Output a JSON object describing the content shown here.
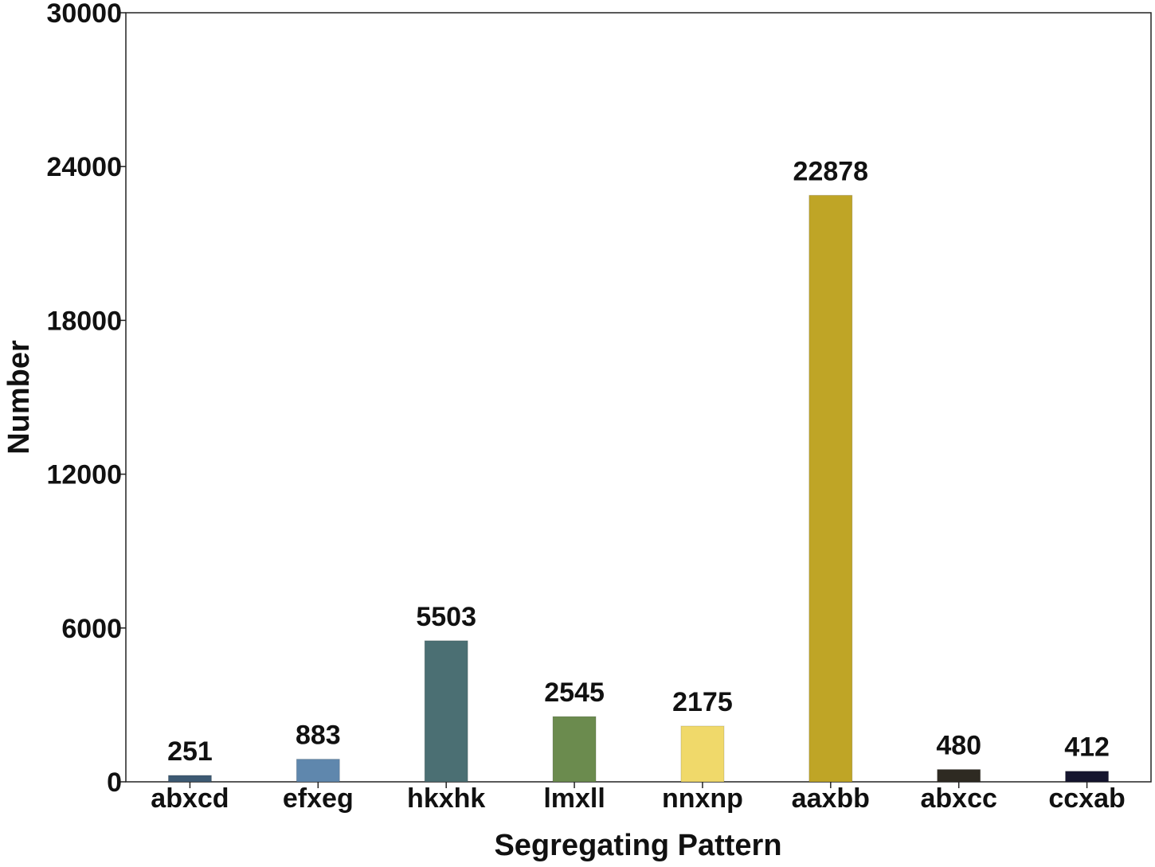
{
  "chart_data": {
    "type": "bar",
    "title": "",
    "xlabel": "Segregating Pattern",
    "ylabel": "Number",
    "ylim": [
      0,
      30000
    ],
    "yticks": [
      0,
      6000,
      12000,
      18000,
      24000,
      30000
    ],
    "ytick_labels": [
      "0",
      "6000",
      "12000",
      "18000",
      "24000",
      "30000"
    ],
    "categories": [
      "abxcd",
      "efxeg",
      "hkxhk",
      "lmxll",
      "nnxnp",
      "aaxbb",
      "abxcc",
      "ccxab"
    ],
    "values": [
      251,
      883,
      5503,
      2545,
      2175,
      22878,
      480,
      412
    ],
    "data_labels": [
      "251",
      "883",
      "5503",
      "2545",
      "2175",
      "22878",
      "480",
      "412"
    ],
    "colors": [
      "#3d5a73",
      "#5f87ad",
      "#4b6f73",
      "#6b8b4e",
      "#f0d96a",
      "#bfa526",
      "#2e2a22",
      "#15152e"
    ],
    "grid": false,
    "legend": "none"
  }
}
